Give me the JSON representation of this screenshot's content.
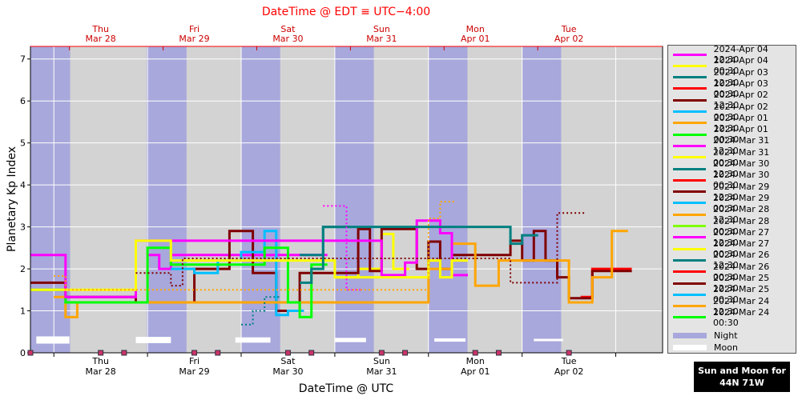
{
  "chart_data": {
    "type": "line",
    "title": "DateTime @ EDT ≡ UTC−4:00",
    "xlabel": "DateTime @ UTC",
    "ylabel": "Planetary Kp Index",
    "ylim": [
      0,
      7.3
    ],
    "yticks": [
      "0",
      "1",
      "2",
      "3",
      "4",
      "5",
      "6",
      "7"
    ],
    "xlim": [
      "2024-03-27 18:00",
      "2024-04-03 12:00"
    ],
    "grid": true,
    "legend_position": "right",
    "bottom_ticks": [
      {
        "day": "Thu",
        "date": "Mar 28"
      },
      {
        "day": "Fri",
        "date": "Mar 29"
      },
      {
        "day": "Sat",
        "date": "Mar 30"
      },
      {
        "day": "Sun",
        "date": "Mar 31"
      },
      {
        "day": "Mon",
        "date": "Apr 01"
      },
      {
        "day": "Tue",
        "date": "Apr 02"
      }
    ],
    "top_ticks": [
      {
        "day": "Thu",
        "date": "Mar 28"
      },
      {
        "day": "Fri",
        "date": "Mar 29"
      },
      {
        "day": "Sat",
        "date": "Mar 30"
      },
      {
        "day": "Sun",
        "date": "Mar 31"
      },
      {
        "day": "Mon",
        "date": "Apr 01"
      },
      {
        "day": "Tue",
        "date": "Apr 02"
      }
    ],
    "night_intervals": [
      [
        "2024-03-27 18:05",
        "2024-03-28 04:10"
      ],
      [
        "2024-03-28 23:45",
        "2024-03-29 10:00"
      ],
      [
        "2024-03-30 00:00",
        "2024-03-30 10:00"
      ],
      [
        "2024-03-31 00:00",
        "2024-03-31 10:00"
      ],
      [
        "2024-04-01 00:00",
        "2024-04-01 10:00"
      ],
      [
        "2024-04-02 00:00",
        "2024-04-02 10:00"
      ]
    ],
    "moon_intervals": [
      [
        "2024-03-27 19:30",
        "2024-03-28 04:00"
      ],
      [
        "2024-03-28 21:00",
        "2024-03-29 06:00"
      ],
      [
        "2024-03-29 22:30",
        "2024-03-30 07:30"
      ],
      [
        "2024-03-31 00:00",
        "2024-03-31 08:00"
      ],
      [
        "2024-04-01 01:30",
        "2024-04-01 09:30"
      ],
      [
        "2024-04-02 03:00",
        "2024-04-02 10:30"
      ]
    ],
    "series": [
      {
        "name": "2024-Apr 04 12:30",
        "color": "#ff00ff",
        "style": "solid",
        "points": [
          [
            "2024-03-29 00:00",
            2.33
          ],
          [
            "2024-03-29 03:00",
            2.0
          ],
          [
            "2024-03-29 06:00",
            2.33
          ],
          [
            "2024-03-30 18:00",
            2.33
          ]
        ]
      },
      {
        "name": "2024-Apr 04 00:30",
        "color": "#ffff00",
        "style": "solid",
        "points": [
          [
            "2024-03-31 00:00",
            1.8
          ],
          [
            "2024-03-31 06:00",
            2.0
          ],
          [
            "2024-03-31 12:00",
            2.83
          ],
          [
            "2024-03-31 15:00",
            2.0
          ]
        ]
      },
      {
        "name": "2024-Apr 03 12:30",
        "color": "#008080",
        "style": "solid",
        "points": [
          [
            "2024-03-30 15:00",
            2.33
          ],
          [
            "2024-03-30 21:00",
            3.0
          ],
          [
            "2024-03-31 00:00",
            3.0
          ]
        ]
      },
      {
        "name": "2024-Apr 03 00:30",
        "color": "#ff0000",
        "style": "solid",
        "points": [
          [
            "2024-04-02 15:00",
            1.33
          ],
          [
            "2024-04-02 18:00",
            2.0
          ],
          [
            "2024-04-02 23:59",
            2.0
          ]
        ]
      },
      {
        "name": "2024-Apr 02 12:30",
        "color": "#800000",
        "style": "solid",
        "points": [
          [
            "2024-03-27 18:00",
            1.67
          ],
          [
            "2024-03-28 00:00",
            1.67
          ],
          [
            "2024-03-28 03:00",
            1.33
          ],
          [
            "2024-03-28 21:00",
            1.2
          ],
          [
            "2024-03-29 06:00",
            1.2
          ],
          [
            "2024-03-29 12:00",
            2.0
          ],
          [
            "2024-03-29 18:00",
            2.0
          ],
          [
            "2024-03-29 21:00",
            2.9
          ],
          [
            "2024-03-30 00:00",
            2.9
          ],
          [
            "2024-03-30 03:00",
            1.9
          ],
          [
            "2024-03-30 06:00",
            1.9
          ],
          [
            "2024-03-30 09:00",
            1.0
          ],
          [
            "2024-03-30 12:00",
            1.0
          ],
          [
            "2024-03-30 15:00",
            1.9
          ],
          [
            "2024-03-31 03:00",
            1.9
          ],
          [
            "2024-03-31 06:00",
            2.95
          ],
          [
            "2024-03-31 09:00",
            1.95
          ],
          [
            "2024-03-31 12:00",
            2.95
          ],
          [
            "2024-03-31 21:00",
            2.0
          ],
          [
            "2024-04-01 00:00",
            2.65
          ],
          [
            "2024-04-01 03:00",
            2.0
          ],
          [
            "2024-04-01 06:00",
            2.33
          ],
          [
            "2024-04-01 18:00",
            2.33
          ],
          [
            "2024-04-01 21:00",
            2.67
          ],
          [
            "2024-04-02 00:00",
            2.2
          ],
          [
            "2024-04-02 03:00",
            2.9
          ],
          [
            "2024-04-02 06:00",
            2.2
          ],
          [
            "2024-04-02 09:00",
            1.8
          ],
          [
            "2024-04-02 12:00",
            1.3
          ],
          [
            "2024-04-02 18:00",
            1.95
          ],
          [
            "2024-04-03 00:00",
            1.95
          ]
        ]
      },
      {
        "name": "2024-Apr 02 00:30",
        "color": "#00bfff",
        "style": "solid",
        "points": [
          [
            "2024-03-29 06:00",
            2.0
          ],
          [
            "2024-03-29 12:00",
            1.9
          ],
          [
            "2024-03-29 18:00",
            2.2
          ],
          [
            "2024-03-30 00:00",
            2.4
          ],
          [
            "2024-03-30 06:00",
            2.9
          ],
          [
            "2024-03-30 09:00",
            0.9
          ],
          [
            "2024-03-30 12:00",
            1.0
          ]
        ]
      },
      {
        "name": "2024-Apr 01 12:30",
        "color": "#ffa500",
        "style": "solid",
        "points": [
          [
            "2024-03-28 00:00",
            1.33
          ],
          [
            "2024-03-28 03:00",
            0.85
          ],
          [
            "2024-03-28 06:00",
            1.2
          ],
          [
            "2024-04-01 00:00",
            2.0
          ],
          [
            "2024-04-01 06:00",
            2.6
          ],
          [
            "2024-04-01 12:00",
            1.6
          ],
          [
            "2024-04-01 18:00",
            2.2
          ],
          [
            "2024-04-02 12:00",
            1.2
          ],
          [
            "2024-04-02 18:00",
            1.8
          ],
          [
            "2024-04-02 23:00",
            2.9
          ]
        ]
      },
      {
        "name": "2024-Apr 01 00:30",
        "color": "#00ff00",
        "style": "solid",
        "points": [
          [
            "2024-03-27 18:00",
            1.5
          ],
          [
            "2024-03-28 03:00",
            1.2
          ],
          [
            "2024-03-29 00:00",
            2.5
          ],
          [
            "2024-03-29 06:00",
            2.1
          ],
          [
            "2024-03-30 06:00",
            2.5
          ],
          [
            "2024-03-30 12:00",
            1.2
          ],
          [
            "2024-03-30 15:00",
            0.85
          ],
          [
            "2024-03-30 18:00",
            2.1
          ]
        ]
      },
      {
        "name": "2024-Mar 31 12:30",
        "color": "#ff00ff",
        "style": "solid",
        "points": [
          [
            "2024-03-27 18:00",
            2.33
          ],
          [
            "2024-03-28 03:00",
            1.33
          ],
          [
            "2024-03-28 21:00",
            2.67
          ],
          [
            "2024-03-30 03:00",
            2.67
          ],
          [
            "2024-03-31 12:00",
            1.85
          ],
          [
            "2024-03-31 18:00",
            2.15
          ],
          [
            "2024-03-31 21:00",
            3.15
          ],
          [
            "2024-04-01 03:00",
            2.85
          ],
          [
            "2024-04-01 06:00",
            1.85
          ]
        ]
      },
      {
        "name": "2024-Mar 31 00:30",
        "color": "#ffff00",
        "style": "solid",
        "points": [
          [
            "2024-03-27 18:00",
            1.5
          ],
          [
            "2024-03-28 21:00",
            2.67
          ],
          [
            "2024-03-29 06:00",
            2.2
          ],
          [
            "2024-03-30 06:00",
            2.2
          ],
          [
            "2024-03-31 00:00",
            1.8
          ],
          [
            "2024-04-01 00:00",
            2.2
          ],
          [
            "2024-04-01 03:00",
            1.8
          ],
          [
            "2024-04-01 06:00",
            2.2
          ]
        ]
      },
      {
        "name": "2024-Mar 31 00:30 teal",
        "color": "#008080",
        "style": "solid",
        "points": [
          [
            "2024-03-30 15:00",
            1.67
          ],
          [
            "2024-03-30 18:00",
            2.0
          ],
          [
            "2024-03-30 21:00",
            3.0
          ],
          [
            "2024-03-31 00:00",
            3.0
          ],
          [
            "2024-04-01 21:00",
            2.6
          ],
          [
            "2024-04-02 00:00",
            2.8
          ]
        ]
      },
      {
        "name": "dotted-maroon",
        "color": "#800000",
        "style": "dotted",
        "points": [
          [
            "2024-03-28 21:00",
            1.9
          ],
          [
            "2024-03-29 06:00",
            1.6
          ],
          [
            "2024-03-29 09:00",
            2.25
          ],
          [
            "2024-03-29 12:00",
            2.25
          ],
          [
            "2024-04-01 21:00",
            1.67
          ],
          [
            "2024-04-02 06:00",
            1.67
          ],
          [
            "2024-04-02 09:00",
            3.33
          ],
          [
            "2024-04-02 12:00",
            3.33
          ]
        ]
      },
      {
        "name": "dotted-magenta",
        "color": "#ff00ff",
        "style": "dotted",
        "points": [
          [
            "2024-03-30 21:00",
            3.5
          ],
          [
            "2024-03-31 00:00",
            3.5
          ],
          [
            "2024-03-31 03:00",
            1.5
          ]
        ]
      },
      {
        "name": "dotted-orange",
        "color": "#ffa500",
        "style": "dotted",
        "points": [
          [
            "2024-03-28 00:00",
            1.83
          ],
          [
            "2024-03-28 03:00",
            1.5
          ],
          [
            "2024-04-01 00:00",
            3.2
          ],
          [
            "2024-04-01 03:00",
            3.6
          ]
        ]
      },
      {
        "name": "dotted-teal",
        "color": "#008080",
        "style": "dotted",
        "points": [
          [
            "2024-03-30 00:00",
            0.67
          ],
          [
            "2024-03-30 03:00",
            1.0
          ],
          [
            "2024-03-30 06:00",
            1.33
          ]
        ]
      }
    ]
  },
  "legend": {
    "items": [
      {
        "label": "2024-Apr 04 12:30",
        "color": "#ff00ff"
      },
      {
        "label": "2024-Apr 04 00:30",
        "color": "#ffff00"
      },
      {
        "label": "2024-Apr 03 12:30",
        "color": "#008080"
      },
      {
        "label": "2024-Apr 03 00:30",
        "color": "#ff0000"
      },
      {
        "label": "2024-Apr 02 12:30",
        "color": "#800000"
      },
      {
        "label": "2024-Apr 02 00:30",
        "color": "#00bfff"
      },
      {
        "label": "2024-Apr 01 12:30",
        "color": "#ffa500"
      },
      {
        "label": "2024-Apr 01 00:30",
        "color": "#00ff00"
      },
      {
        "label": "2024-Mar 31 12:30",
        "color": "#ff00ff"
      },
      {
        "label": "2024-Mar 31 00:30",
        "color": "#ffff00"
      },
      {
        "label": "2024-Mar 30 12:30",
        "color": "#008080"
      },
      {
        "label": "2024-Mar 30 00:30",
        "color": "#ff0000"
      },
      {
        "label": "2024-Mar 29 12:30",
        "color": "#800000"
      },
      {
        "label": "2024-Mar 29 00:30",
        "color": "#00bfff"
      },
      {
        "label": "2024-Mar 28 12:30",
        "color": "#ffa500"
      },
      {
        "label": "2024-Mar 28 00:30",
        "color": "#7fff00"
      },
      {
        "label": "2024-Mar 27 12:30",
        "color": "#ff00ff"
      },
      {
        "label": "2024-Mar 27 00:30",
        "color": "#ffff00"
      },
      {
        "label": "2024-Mar 26 12:30",
        "color": "#008080"
      },
      {
        "label": "2024-Mar 26 00:30",
        "color": "#ff0000"
      },
      {
        "label": "2024-Mar 25 12:30",
        "color": "#800000"
      },
      {
        "label": "2024-Mar 25 00:30",
        "color": "#00bfff"
      },
      {
        "label": "2024-Mar 24 12:30",
        "color": "#ffa500"
      },
      {
        "label": "2024-Mar 24 00:30",
        "color": "#00ff00"
      }
    ],
    "night_label": "Night",
    "night_color": "#a8a8dc",
    "moon_label": "Moon",
    "moon_color": "#ffffff"
  },
  "badge": {
    "line1": "Sun and Moon for",
    "line2": "44N 71W"
  },
  "colors": {
    "plot_bg": "#d3d3d3",
    "night": "#a8a8dc",
    "title": "#ff0000",
    "grid": "#ffffff"
  }
}
